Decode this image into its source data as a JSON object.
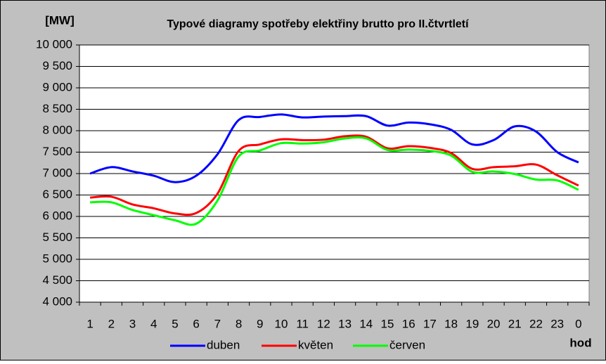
{
  "chart_data": {
    "type": "line",
    "title": "Typové diagramy spotřeby elektřiny brutto pro II.čtvrtletí",
    "y_label": "[MW]",
    "x_label": "hod",
    "categories": [
      "1",
      "2",
      "3",
      "4",
      "5",
      "6",
      "7",
      "8",
      "9",
      "10",
      "11",
      "12",
      "13",
      "14",
      "15",
      "16",
      "17",
      "18",
      "19",
      "20",
      "21",
      "22",
      "23",
      "0"
    ],
    "series": [
      {
        "name": "duben",
        "color": "#0000ff",
        "values": [
          7000,
          7150,
          7050,
          6950,
          6800,
          6950,
          7450,
          8250,
          8320,
          8380,
          8310,
          8330,
          8340,
          8340,
          8120,
          8190,
          8150,
          8020,
          7680,
          7780,
          8100,
          7980,
          7500,
          7260
        ]
      },
      {
        "name": "květen",
        "color": "#ff0000",
        "values": [
          6440,
          6460,
          6280,
          6190,
          6070,
          6080,
          6530,
          7530,
          7680,
          7800,
          7780,
          7790,
          7870,
          7860,
          7590,
          7640,
          7600,
          7480,
          7110,
          7150,
          7170,
          7210,
          6960,
          6720
        ]
      },
      {
        "name": "červen",
        "color": "#00ff00",
        "values": [
          6330,
          6330,
          6150,
          6030,
          5910,
          5830,
          6370,
          7400,
          7540,
          7710,
          7700,
          7730,
          7820,
          7820,
          7550,
          7560,
          7530,
          7420,
          7040,
          7050,
          6990,
          6860,
          6840,
          6620
        ]
      }
    ],
    "ylim": [
      4000,
      10000
    ],
    "yticks": [
      {
        "value": 4000,
        "label": "4 000"
      },
      {
        "value": 4500,
        "label": "4 500"
      },
      {
        "value": 5000,
        "label": "5 000"
      },
      {
        "value": 5500,
        "label": "5 500"
      },
      {
        "value": 6000,
        "label": "6 000"
      },
      {
        "value": 6500,
        "label": "6 500"
      },
      {
        "value": 7000,
        "label": "7 000"
      },
      {
        "value": 7500,
        "label": "7 500"
      },
      {
        "value": 8000,
        "label": "8 000"
      },
      {
        "value": 8500,
        "label": "8 500"
      },
      {
        "value": 9000,
        "label": "9 000"
      },
      {
        "value": 9500,
        "label": "9 500"
      },
      {
        "value": 10000,
        "label": "10 000"
      }
    ],
    "grid": true,
    "legend": "bottom"
  }
}
